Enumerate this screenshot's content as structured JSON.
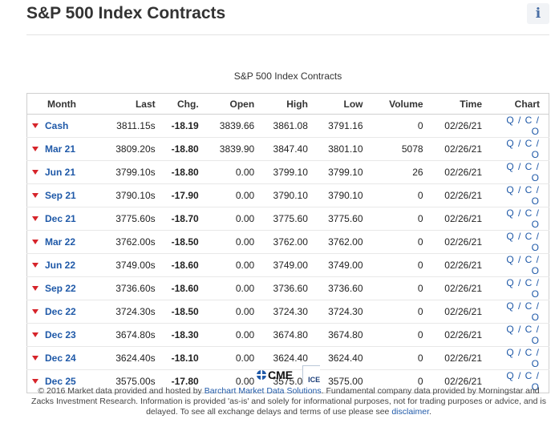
{
  "header": {
    "title": "S&P 500 Index Contracts",
    "info_icon_glyph": "i"
  },
  "table": {
    "caption": "S&P 500 Index Contracts",
    "columns": [
      "Month",
      "Last",
      "Chg.",
      "Open",
      "High",
      "Low",
      "Volume",
      "Time",
      "Chart"
    ],
    "rows": [
      {
        "month": "Cash",
        "last": "3811.15s",
        "chg": "-18.19",
        "open": "3839.66",
        "high": "3861.08",
        "low": "3791.16",
        "volume": "0",
        "time": "02/26/21",
        "chart": "Q / C / O"
      },
      {
        "month": "Mar 21",
        "last": "3809.20s",
        "chg": "-18.80",
        "open": "3839.90",
        "high": "3847.40",
        "low": "3801.10",
        "volume": "5078",
        "time": "02/26/21",
        "chart": "Q / C / O"
      },
      {
        "month": "Jun 21",
        "last": "3799.10s",
        "chg": "-18.80",
        "open": "0.00",
        "high": "3799.10",
        "low": "3799.10",
        "volume": "26",
        "time": "02/26/21",
        "chart": "Q / C / O"
      },
      {
        "month": "Sep 21",
        "last": "3790.10s",
        "chg": "-17.90",
        "open": "0.00",
        "high": "3790.10",
        "low": "3790.10",
        "volume": "0",
        "time": "02/26/21",
        "chart": "Q / C / O"
      },
      {
        "month": "Dec 21",
        "last": "3775.60s",
        "chg": "-18.70",
        "open": "0.00",
        "high": "3775.60",
        "low": "3775.60",
        "volume": "0",
        "time": "02/26/21",
        "chart": "Q / C / O"
      },
      {
        "month": "Mar 22",
        "last": "3762.00s",
        "chg": "-18.50",
        "open": "0.00",
        "high": "3762.00",
        "low": "3762.00",
        "volume": "0",
        "time": "02/26/21",
        "chart": "Q / C / O"
      },
      {
        "month": "Jun 22",
        "last": "3749.00s",
        "chg": "-18.60",
        "open": "0.00",
        "high": "3749.00",
        "low": "3749.00",
        "volume": "0",
        "time": "02/26/21",
        "chart": "Q / C / O"
      },
      {
        "month": "Sep 22",
        "last": "3736.60s",
        "chg": "-18.60",
        "open": "0.00",
        "high": "3736.60",
        "low": "3736.60",
        "volume": "0",
        "time": "02/26/21",
        "chart": "Q / C / O"
      },
      {
        "month": "Dec 22",
        "last": "3724.30s",
        "chg": "-18.50",
        "open": "0.00",
        "high": "3724.30",
        "low": "3724.30",
        "volume": "0",
        "time": "02/26/21",
        "chart": "Q / C / O"
      },
      {
        "month": "Dec 23",
        "last": "3674.80s",
        "chg": "-18.30",
        "open": "0.00",
        "high": "3674.80",
        "low": "3674.80",
        "volume": "0",
        "time": "02/26/21",
        "chart": "Q / C / O"
      },
      {
        "month": "Dec 24",
        "last": "3624.40s",
        "chg": "-18.10",
        "open": "0.00",
        "high": "3624.40",
        "low": "3624.40",
        "volume": "0",
        "time": "02/26/21",
        "chart": "Q / C / O"
      },
      {
        "month": "Dec 25",
        "last": "3575.00s",
        "chg": "-17.80",
        "open": "0.00",
        "high": "3575.00",
        "low": "3575.00",
        "volume": "0",
        "time": "02/26/21",
        "chart": "Q / C / O"
      }
    ]
  },
  "logos": {
    "cme": "CME",
    "ice": "ICE"
  },
  "footer": {
    "text_1": "© 2016 Market data provided and hosted by ",
    "link_barchart": "Barchart Market Data Solutions",
    "text_2": ". Fundamental company data provided by Morningstar and Zacks Investment Research. Information is provided 'as-is' and solely for informational purposes, not for trading purposes or advice, and is delayed. To see all exchange delays and terms of use please see ",
    "link_disclaimer": "disclaimer",
    "text_3": "."
  },
  "colors": {
    "link": "#1f59a8",
    "down": "#d21f1f"
  }
}
